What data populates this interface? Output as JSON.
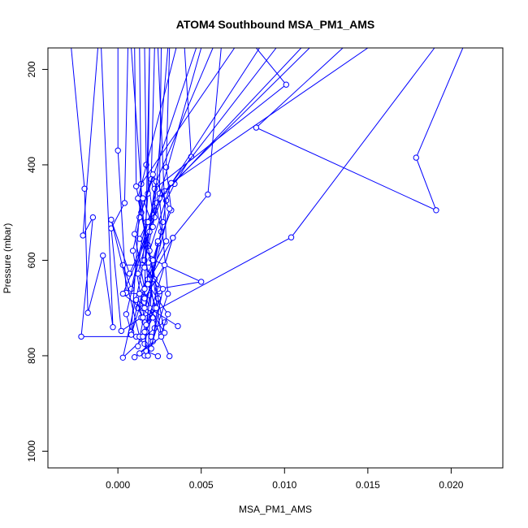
{
  "chart_data": {
    "type": "line",
    "title": "ATOM4 Southbound MSA_PM1_AMS",
    "xlabel": "MSA_PM1_AMS",
    "ylabel": "Pressure (mbar)",
    "xlim": [
      -0.0042,
      0.0231
    ],
    "ylim": [
      1035,
      155
    ],
    "y_reversed": true,
    "xticks": [
      0.0,
      0.005,
      0.01,
      0.015,
      0.02
    ],
    "xtick_labels": [
      "0.000",
      "0.005",
      "0.010",
      "0.015",
      "0.020"
    ],
    "yticks": [
      200,
      400,
      600,
      800,
      1000
    ],
    "ytick_labels": [
      "200",
      "400",
      "600",
      "800",
      "1000"
    ],
    "grid": false,
    "series_color": "#0000ff",
    "series": [
      {
        "values": [
          [
            -0.0028,
            155
          ],
          [
            -0.002,
            450
          ],
          [
            -0.0018,
            710
          ],
          [
            -0.0009,
            590
          ],
          [
            -0.0003,
            740
          ],
          [
            -0.001,
            155
          ]
        ]
      },
      {
        "values": [
          [
            -0.0012,
            155
          ],
          [
            -0.0021,
            548
          ],
          [
            -0.0015,
            510
          ],
          [
            -0.0022,
            760
          ],
          [
            0.0011,
            760
          ],
          [
            0.0016,
            775
          ]
        ]
      },
      {
        "values": [
          [
            0.0,
            155
          ],
          [
            0.0,
            370
          ],
          [
            0.0005,
            668
          ],
          [
            0.0019,
            673
          ],
          [
            0.0016,
            800
          ]
        ]
      },
      {
        "values": [
          [
            0.0006,
            155
          ],
          [
            0.0004,
            480
          ],
          [
            -0.0004,
            533
          ],
          [
            0.0002,
            748
          ],
          [
            0.0014,
            720
          ],
          [
            0.002,
            760
          ]
        ]
      },
      {
        "values": [
          [
            0.001,
            155
          ],
          [
            0.0011,
            445
          ],
          [
            0.0018,
            568
          ],
          [
            0.0003,
            804
          ],
          [
            0.0022,
            742
          ],
          [
            0.0028,
            730
          ]
        ]
      },
      {
        "values": [
          [
            0.0013,
            155
          ],
          [
            0.0014,
            500
          ],
          [
            0.0009,
            580
          ],
          [
            0.0015,
            700
          ],
          [
            0.0017,
            790
          ],
          [
            0.0024,
            801
          ]
        ]
      },
      {
        "values": [
          [
            0.0016,
            155
          ],
          [
            0.0017,
            400
          ],
          [
            0.0021,
            505
          ],
          [
            0.0012,
            628
          ],
          [
            0.0021,
            720
          ],
          [
            0.0031,
            801
          ]
        ]
      },
      {
        "values": [
          [
            0.0019,
            155
          ],
          [
            0.0018,
            460
          ],
          [
            0.0015,
            600
          ],
          [
            0.0025,
            665
          ],
          [
            0.0021,
            770
          ],
          [
            0.001,
            803
          ]
        ]
      },
      {
        "values": [
          [
            0.0022,
            155
          ],
          [
            0.002,
            430
          ],
          [
            0.0026,
            540
          ],
          [
            0.0018,
            650
          ],
          [
            0.003,
            713
          ],
          [
            0.0026,
            755
          ]
        ]
      },
      {
        "values": [
          [
            0.0026,
            155
          ],
          [
            0.0025,
            460
          ],
          [
            0.0018,
            575
          ],
          [
            0.0021,
            610
          ],
          [
            0.0024,
            680
          ],
          [
            0.0017,
            750
          ]
        ]
      },
      {
        "values": [
          [
            0.0031,
            155
          ],
          [
            0.0029,
            405
          ],
          [
            0.0032,
            495
          ],
          [
            0.0024,
            565
          ],
          [
            0.0012,
            700
          ],
          [
            0.0016,
            730
          ]
        ]
      },
      {
        "values": [
          [
            0.004,
            155
          ],
          [
            0.0044,
            383
          ],
          [
            0.0034,
            440
          ],
          [
            0.0029,
            475
          ],
          [
            0.0027,
            520
          ],
          [
            0.0012,
            780
          ]
        ]
      },
      {
        "values": [
          [
            0.0062,
            155
          ],
          [
            0.0054,
            462
          ],
          [
            0.0033,
            553
          ],
          [
            0.0019,
            640
          ],
          [
            0.0022,
            700
          ]
        ]
      },
      {
        "values": [
          [
            0.0085,
            155
          ],
          [
            0.0017,
            520
          ],
          [
            0.0008,
            660
          ],
          [
            0.0003,
            610
          ],
          [
            0.0021,
            610
          ]
        ]
      },
      {
        "values": [
          [
            0.0095,
            155
          ],
          [
            0.0023,
            480
          ],
          [
            0.0013,
            555
          ],
          [
            0.002,
            597
          ],
          [
            0.005,
            645
          ],
          [
            0.0024,
            660
          ]
        ]
      },
      {
        "values": [
          [
            0.0115,
            155
          ],
          [
            0.0028,
            455
          ],
          [
            0.0022,
            510
          ],
          [
            0.0007,
            628
          ],
          [
            -0.0004,
            515
          ],
          [
            0.0013,
            760
          ]
        ]
      },
      {
        "values": [
          [
            0.0083,
            155
          ],
          [
            0.0101,
            232
          ],
          [
            0.0022,
            450
          ],
          [
            0.0016,
            600
          ]
        ]
      },
      {
        "values": [
          [
            0.0135,
            155
          ],
          [
            0.0083,
            322
          ],
          [
            0.0191,
            495
          ],
          [
            0.0179,
            385
          ],
          [
            0.0207,
            155
          ]
        ]
      },
      {
        "values": [
          [
            0.019,
            155
          ],
          [
            0.0104,
            552
          ],
          [
            0.0015,
            720
          ],
          [
            0.0011,
            683
          ],
          [
            0.0036,
            738
          ]
        ]
      },
      {
        "values": [
          [
            0.015,
            155
          ],
          [
            0.0032,
            438
          ],
          [
            0.0019,
            580
          ],
          [
            0.0026,
            760
          ],
          [
            0.0013,
            795
          ]
        ]
      },
      {
        "values": [
          [
            0.011,
            155
          ],
          [
            0.0025,
            470
          ],
          [
            0.003,
            670
          ],
          [
            0.0018,
            800
          ],
          [
            0.0021,
            600
          ]
        ]
      },
      {
        "values": [
          [
            0.007,
            155
          ],
          [
            0.0014,
            440
          ],
          [
            0.0008,
            750
          ],
          [
            0.0005,
            713
          ],
          [
            0.0018,
            520
          ]
        ]
      },
      {
        "values": [
          [
            0.005,
            155
          ],
          [
            0.0019,
            540
          ],
          [
            0.0003,
            670
          ],
          [
            0.0021,
            720
          ],
          [
            0.0015,
            760
          ]
        ]
      },
      {
        "values": [
          [
            0.0035,
            155
          ],
          [
            0.0012,
            470
          ],
          [
            0.0022,
            640
          ],
          [
            0.0028,
            752
          ],
          [
            0.0019,
            700
          ]
        ]
      },
      {
        "values": [
          [
            0.0024,
            155
          ],
          [
            0.0029,
            560
          ],
          [
            0.0013,
            670
          ],
          [
            0.0008,
            756
          ],
          [
            0.0018,
            640
          ]
        ]
      },
      {
        "values": [
          [
            0.0019,
            155
          ],
          [
            0.0016,
            680
          ],
          [
            0.0028,
            610
          ],
          [
            0.0033,
            553
          ],
          [
            0.0016,
            750
          ]
        ]
      },
      {
        "values": [
          [
            0.0047,
            155
          ],
          [
            0.0013,
            510
          ],
          [
            0.0021,
            420
          ],
          [
            0.0031,
            492
          ],
          [
            0.0016,
            700
          ]
        ]
      },
      {
        "values": [
          [
            0.0057,
            155
          ],
          [
            0.0023,
            435
          ],
          [
            0.0016,
            615
          ],
          [
            0.0027,
            660
          ],
          [
            0.002,
            785
          ]
        ]
      },
      {
        "values": [
          [
            0.0008,
            155
          ],
          [
            0.0018,
            650
          ],
          [
            0.0023,
            700
          ],
          [
            0.0017,
            735
          ],
          [
            0.0024,
            560
          ]
        ]
      },
      {
        "values": [
          [
            0.003,
            155
          ],
          [
            0.0021,
            530
          ],
          [
            0.0015,
            470
          ],
          [
            0.001,
            545
          ],
          [
            0.0016,
            660
          ]
        ]
      }
    ]
  }
}
